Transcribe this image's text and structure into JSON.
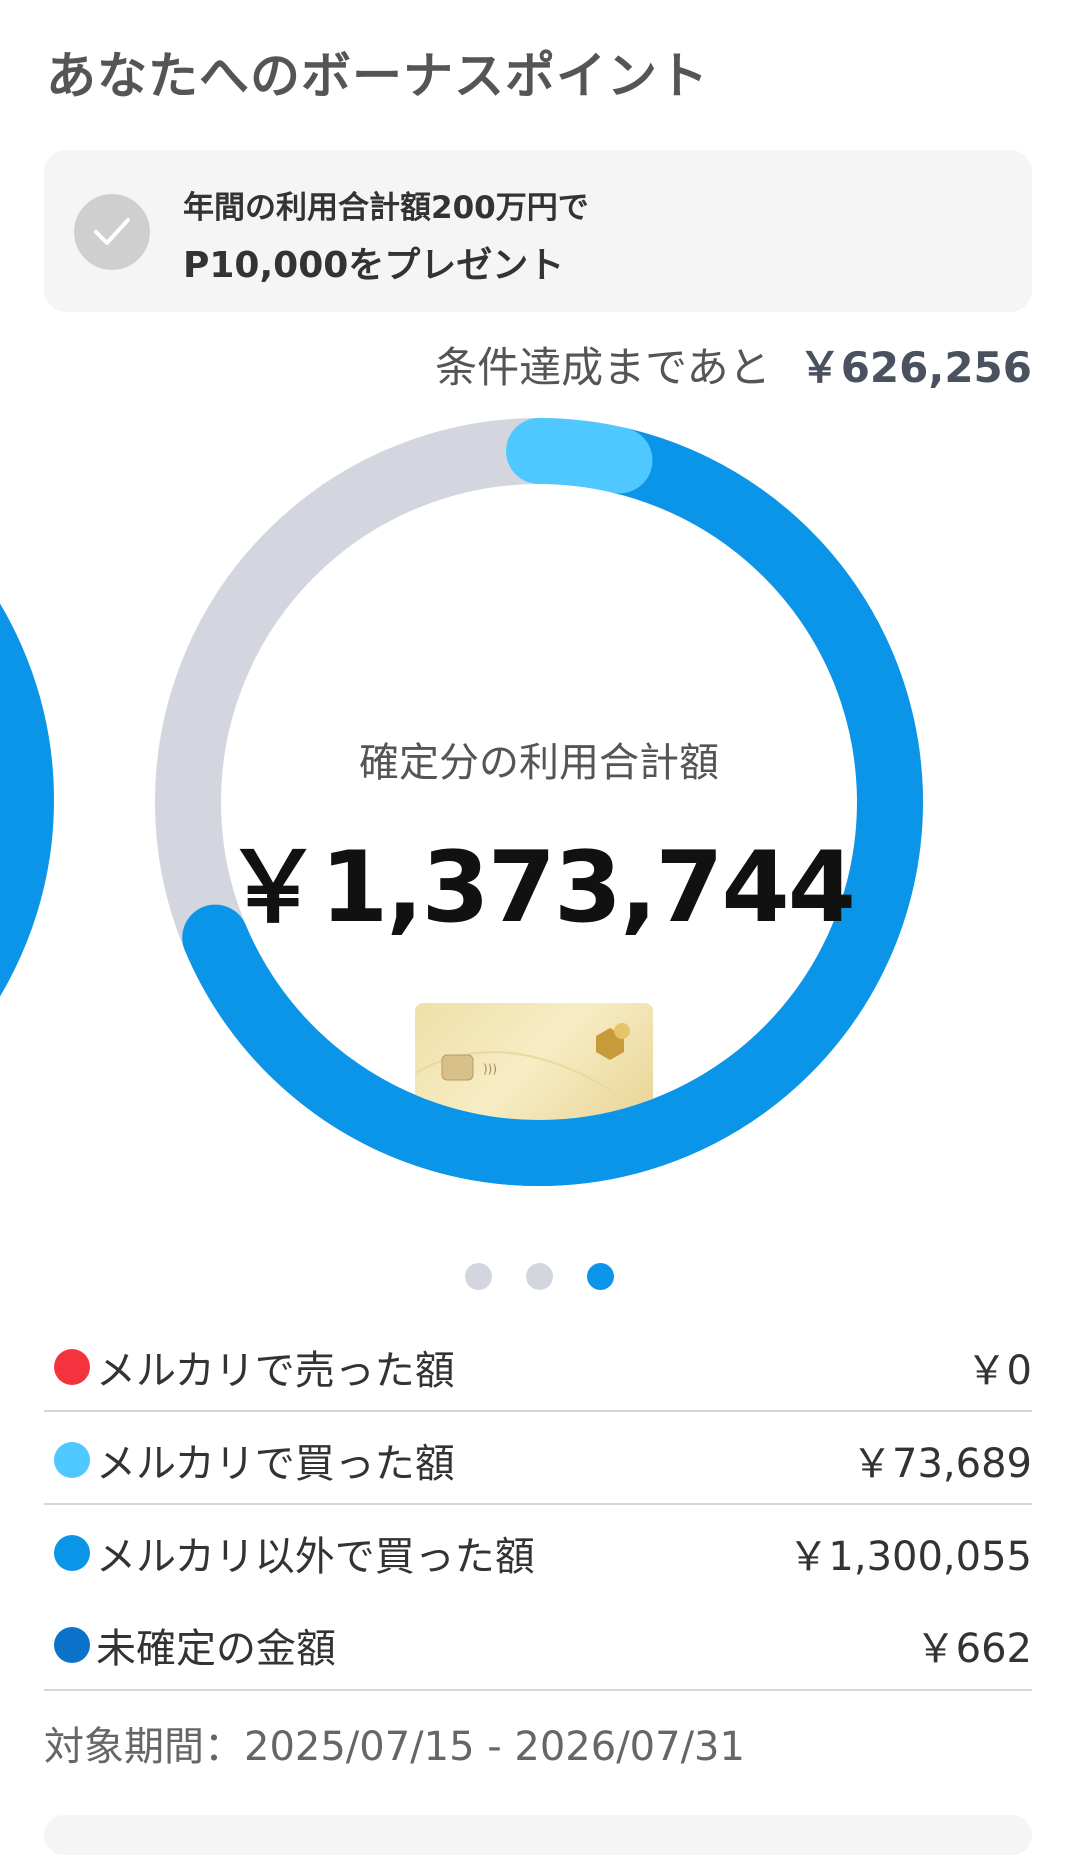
{
  "title": "あなたへのボーナスポイント",
  "condition": {
    "line1": "年間の利用合計額200万円で",
    "line2": "P10,000をプレゼント",
    "achieved": false,
    "icon": "check-icon"
  },
  "remaining": {
    "label": "条件達成まであと",
    "amount": "￥626,256"
  },
  "chart_data": {
    "type": "donut",
    "goal": 2000000,
    "segments": [
      {
        "name": "メルカリで売った額",
        "value": 0,
        "color": "#f5333f"
      },
      {
        "name": "メルカリで買った額",
        "value": 73689,
        "color": "#4fc8ff"
      },
      {
        "name": "メルカリ以外で買った額",
        "value": 1300055,
        "color": "#0b95e8"
      }
    ],
    "remainder_color": "#d3d6de"
  },
  "center": {
    "label": "確定分の利用合計額",
    "amount": "￥1,373,744"
  },
  "carousel": {
    "count": 3,
    "active": 3
  },
  "breakdown": [
    {
      "label": "メルカリで売った額",
      "value": "￥0",
      "color": "#f5333f"
    },
    {
      "label": "メルカリで買った額",
      "value": "￥73,689",
      "color": "#4fc8ff"
    },
    {
      "label": "メルカリ以外で買った額",
      "value": "￥1,300,055",
      "color": "#0b95e8"
    },
    {
      "label": "未確定の金額",
      "value": "￥662",
      "color": "#0a72c8"
    }
  ],
  "period": "対象期間：2025/07/15 - 2026/07/31"
}
